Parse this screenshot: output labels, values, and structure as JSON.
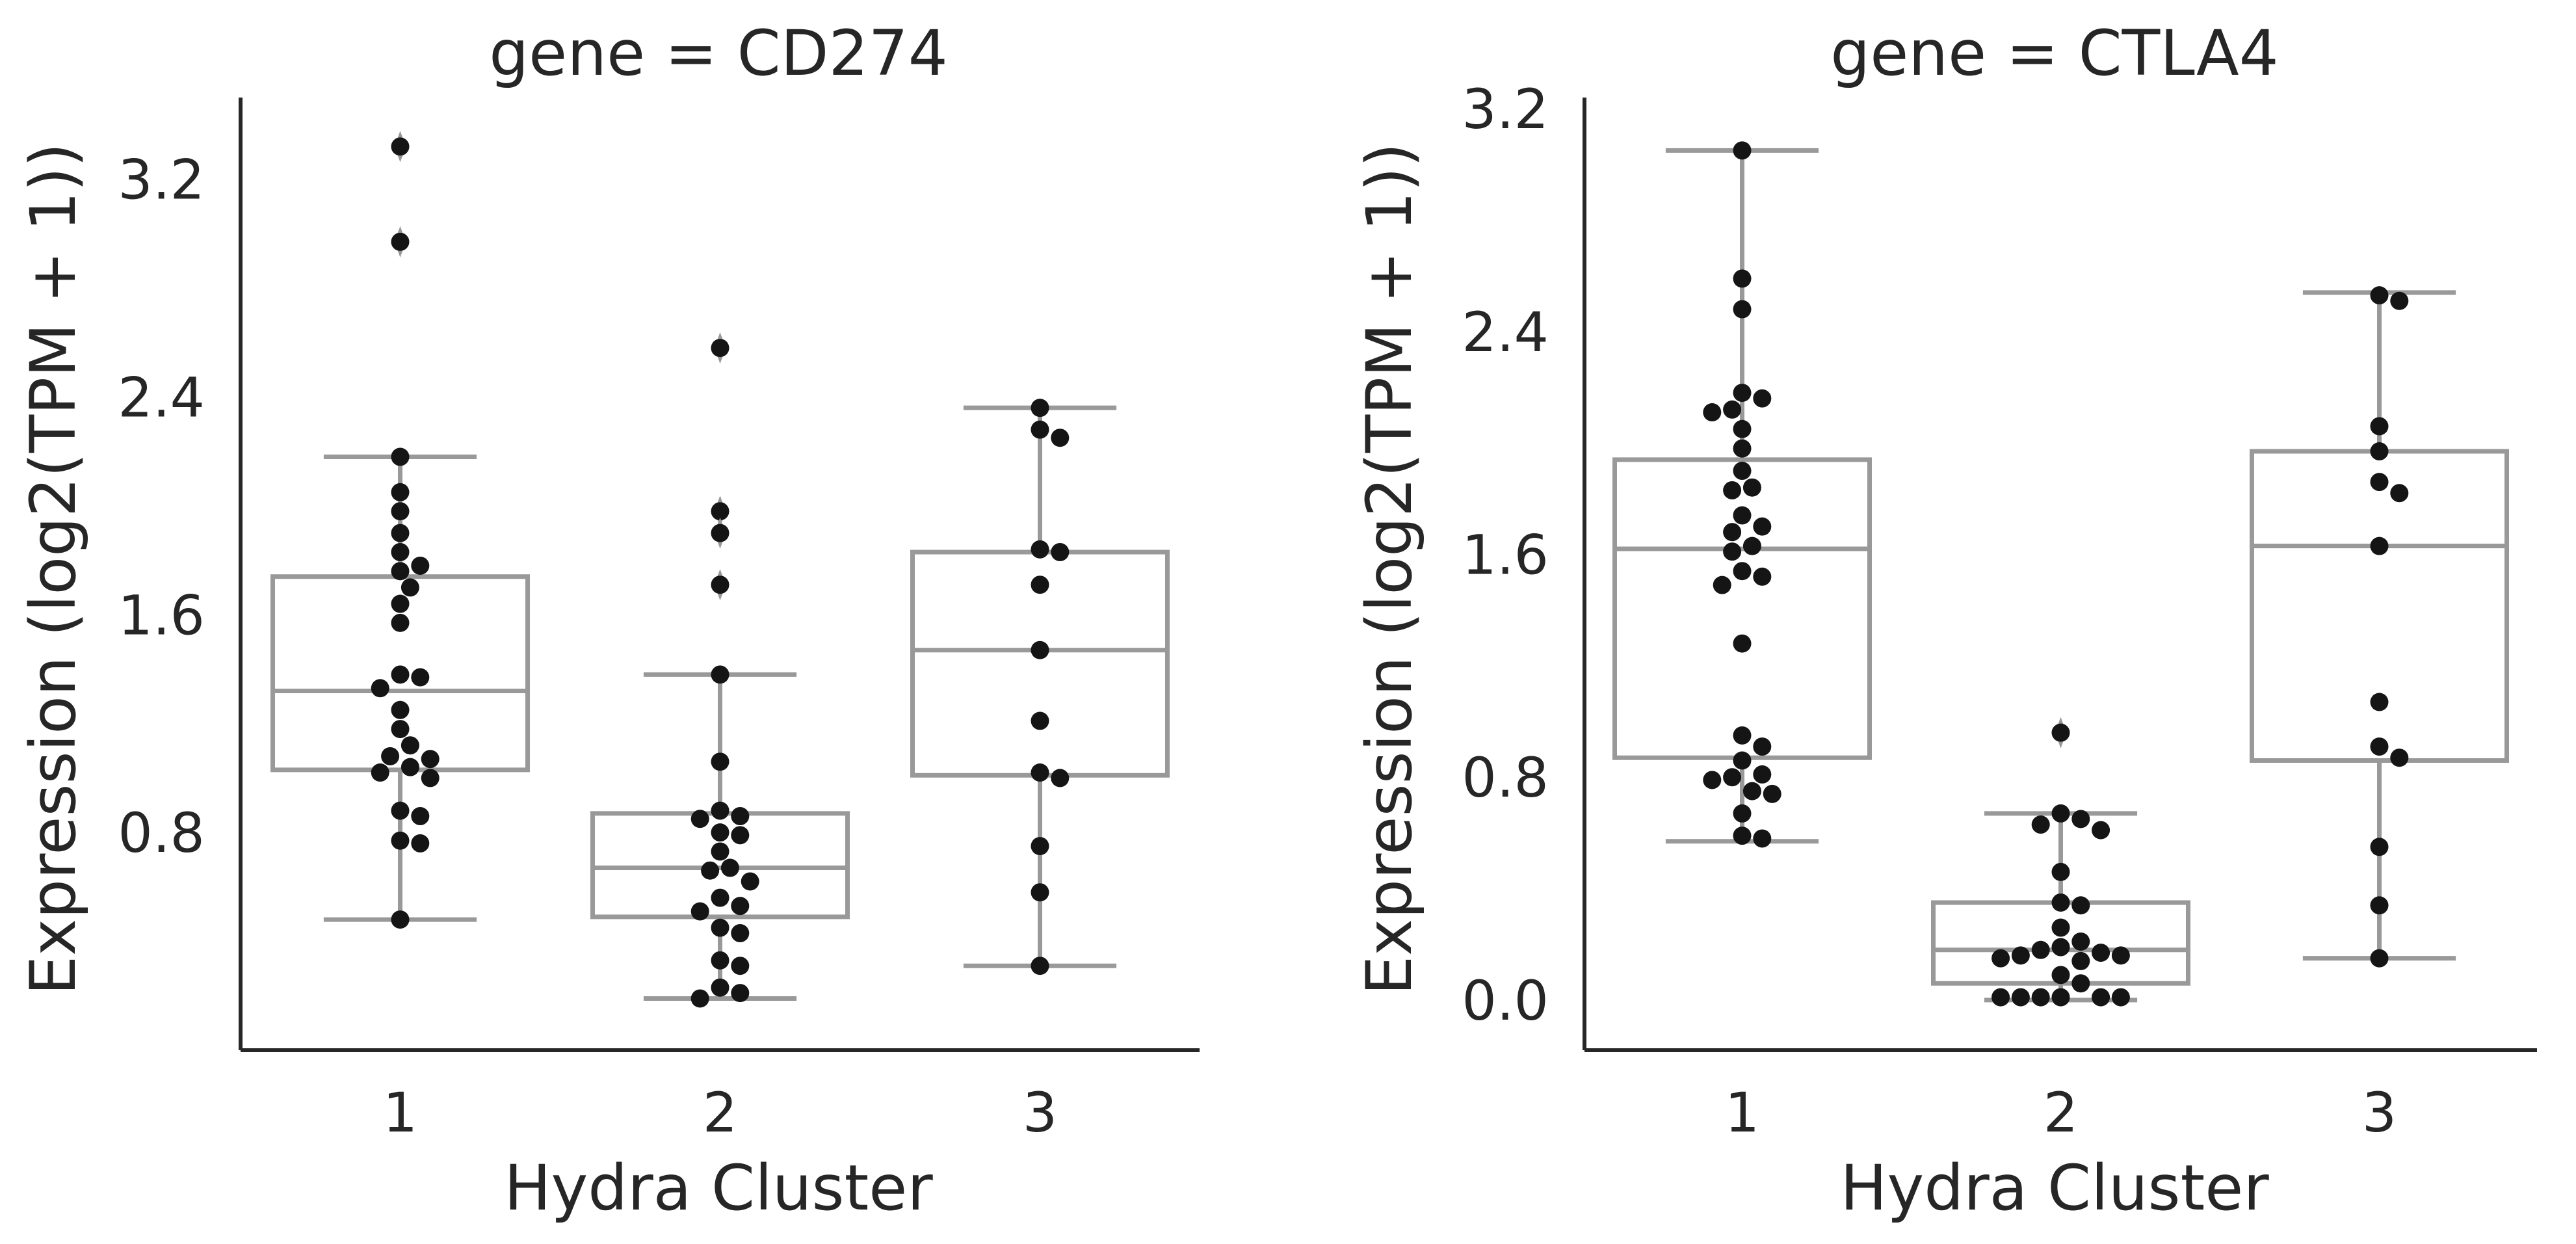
{
  "chart_data": [
    {
      "type": "box",
      "title": "gene = CD274",
      "xlabel": "Hydra Cluster",
      "ylabel": "Expression (log2(TPM + 1))",
      "categories": [
        "1",
        "2",
        "3"
      ],
      "ylim": [
        0.0,
        3.5
      ],
      "yticks": [
        0.8,
        1.6,
        2.4,
        3.2
      ],
      "ytick_labels": [
        "0.8",
        "1.6",
        "2.4",
        "3.2"
      ],
      "boxes": [
        {
          "category": "1",
          "q1": 1.03,
          "median": 1.32,
          "q3": 1.74,
          "whisker_low": 0.48,
          "whisker_high": 2.18
        },
        {
          "category": "2",
          "q1": 0.49,
          "median": 0.67,
          "q3": 0.87,
          "whisker_low": 0.19,
          "whisker_high": 1.38
        },
        {
          "category": "3",
          "q1": 1.01,
          "median": 1.47,
          "q3": 1.83,
          "whisker_low": 0.31,
          "whisker_high": 2.36
        }
      ],
      "points": [
        {
          "category": "1",
          "values": [
            3.32,
            2.97,
            2.18,
            2.05,
            1.98,
            1.9,
            1.83,
            1.78,
            1.76,
            1.7,
            1.64,
            1.57,
            1.38,
            1.37,
            1.33,
            1.25,
            1.18,
            1.12,
            1.08,
            1.07,
            1.04,
            1.02,
            1.0,
            0.88,
            0.86,
            0.77,
            0.76,
            0.48
          ]
        },
        {
          "category": "2",
          "values": [
            2.58,
            1.98,
            1.9,
            1.71,
            1.38,
            1.06,
            0.88,
            0.86,
            0.85,
            0.8,
            0.79,
            0.73,
            0.67,
            0.66,
            0.62,
            0.56,
            0.53,
            0.51,
            0.45,
            0.43,
            0.33,
            0.31,
            0.23,
            0.21,
            0.19
          ]
        },
        {
          "category": "3",
          "values": [
            2.36,
            2.28,
            2.25,
            1.84,
            1.83,
            1.71,
            1.47,
            1.21,
            1.02,
            1.0,
            0.75,
            0.58,
            0.31
          ]
        }
      ]
    },
    {
      "type": "box",
      "title": "gene = CTLA4",
      "xlabel": "Hydra Cluster",
      "ylabel": "Expression (log2(TPM + 1))",
      "categories": [
        "1",
        "2",
        "3"
      ],
      "ylim": [
        -0.18,
        3.24
      ],
      "yticks": [
        0.0,
        0.8,
        1.6,
        2.4,
        3.2
      ],
      "ytick_labels": [
        "0.0",
        "0.8",
        "1.6",
        "2.4",
        "3.2"
      ],
      "boxes": [
        {
          "category": "1",
          "q1": 0.87,
          "median": 1.62,
          "q3": 1.94,
          "whisker_low": 0.57,
          "whisker_high": 3.05
        },
        {
          "category": "2",
          "q1": 0.06,
          "median": 0.18,
          "q3": 0.35,
          "whisker_low": 0.0,
          "whisker_high": 0.67
        },
        {
          "category": "3",
          "q1": 0.86,
          "median": 1.63,
          "q3": 1.97,
          "whisker_low": 0.15,
          "whisker_high": 2.54
        }
      ],
      "points": [
        {
          "category": "1",
          "values": [
            3.05,
            2.59,
            2.48,
            2.18,
            2.16,
            2.12,
            2.11,
            2.05,
            1.98,
            1.9,
            1.84,
            1.83,
            1.74,
            1.7,
            1.68,
            1.63,
            1.61,
            1.54,
            1.52,
            1.49,
            1.28,
            0.95,
            0.91,
            0.86,
            0.81,
            0.8,
            0.79,
            0.75,
            0.74,
            0.67,
            0.59,
            0.58
          ]
        },
        {
          "category": "2",
          "values": [
            0.96,
            0.67,
            0.65,
            0.63,
            0.61,
            0.46,
            0.35,
            0.34,
            0.26,
            0.21,
            0.19,
            0.18,
            0.17,
            0.16,
            0.16,
            0.15,
            0.14,
            0.09,
            0.06,
            0.01,
            0.01,
            0.01,
            0.01,
            0.01,
            0.01
          ]
        },
        {
          "category": "3",
          "values": [
            2.53,
            2.51,
            2.06,
            1.97,
            1.86,
            1.82,
            1.63,
            1.07,
            0.91,
            0.87,
            0.55,
            0.34,
            0.15
          ]
        }
      ]
    }
  ]
}
